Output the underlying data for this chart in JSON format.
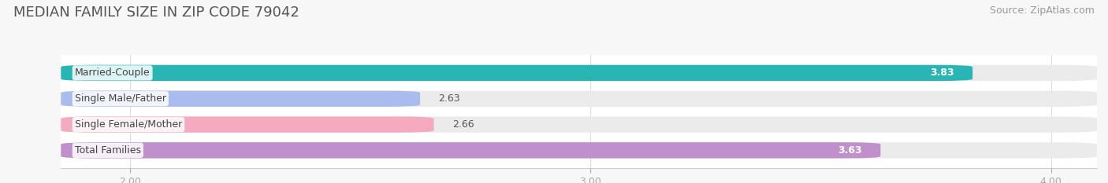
{
  "title": "MEDIAN FAMILY SIZE IN ZIP CODE 79042",
  "source": "Source: ZipAtlas.com",
  "categories": [
    "Married-Couple",
    "Single Male/Father",
    "Single Female/Mother",
    "Total Families"
  ],
  "values": [
    3.83,
    2.63,
    2.66,
    3.63
  ],
  "bar_colors": [
    "#2ab5b5",
    "#aabbee",
    "#f5aac0",
    "#c090cc"
  ],
  "label_colors": [
    "#ffffff",
    "#555555",
    "#555555",
    "#ffffff"
  ],
  "bar_bg_color": "#ebebeb",
  "xmin": 1.85,
  "xmax": 4.1,
  "xticks": [
    2.0,
    3.0,
    4.0
  ],
  "xtick_labels": [
    "2.00",
    "3.00",
    "4.00"
  ],
  "title_fontsize": 13,
  "source_fontsize": 9,
  "label_fontsize": 9,
  "value_fontsize": 9,
  "bar_height": 0.62,
  "background_color": "#f7f7f7",
  "plot_bg_color": "#ffffff"
}
